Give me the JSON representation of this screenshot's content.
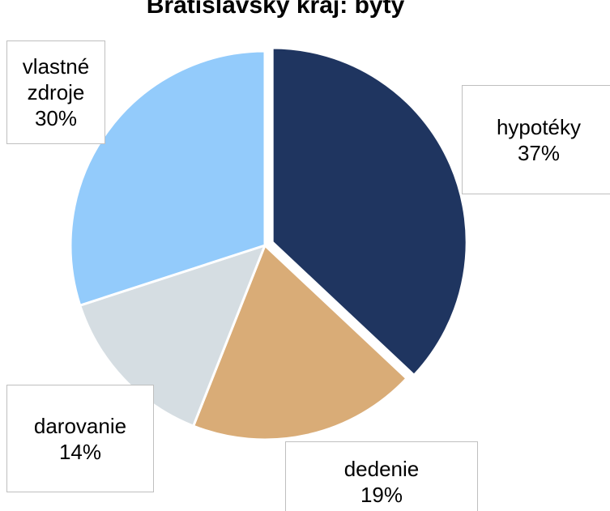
{
  "chart_data": {
    "type": "pie",
    "title": "Bratislavský kraj: byty",
    "categories": [
      "hypotéky",
      "dedenie",
      "darovanie",
      "vlastné zdroje"
    ],
    "values": [
      37,
      19,
      14,
      30
    ],
    "value_labels": [
      "37%",
      "19%",
      "14%",
      "30%"
    ],
    "colors": [
      "#1f3560",
      "#d9ac77",
      "#d5dde2",
      "#93cbfb"
    ]
  }
}
